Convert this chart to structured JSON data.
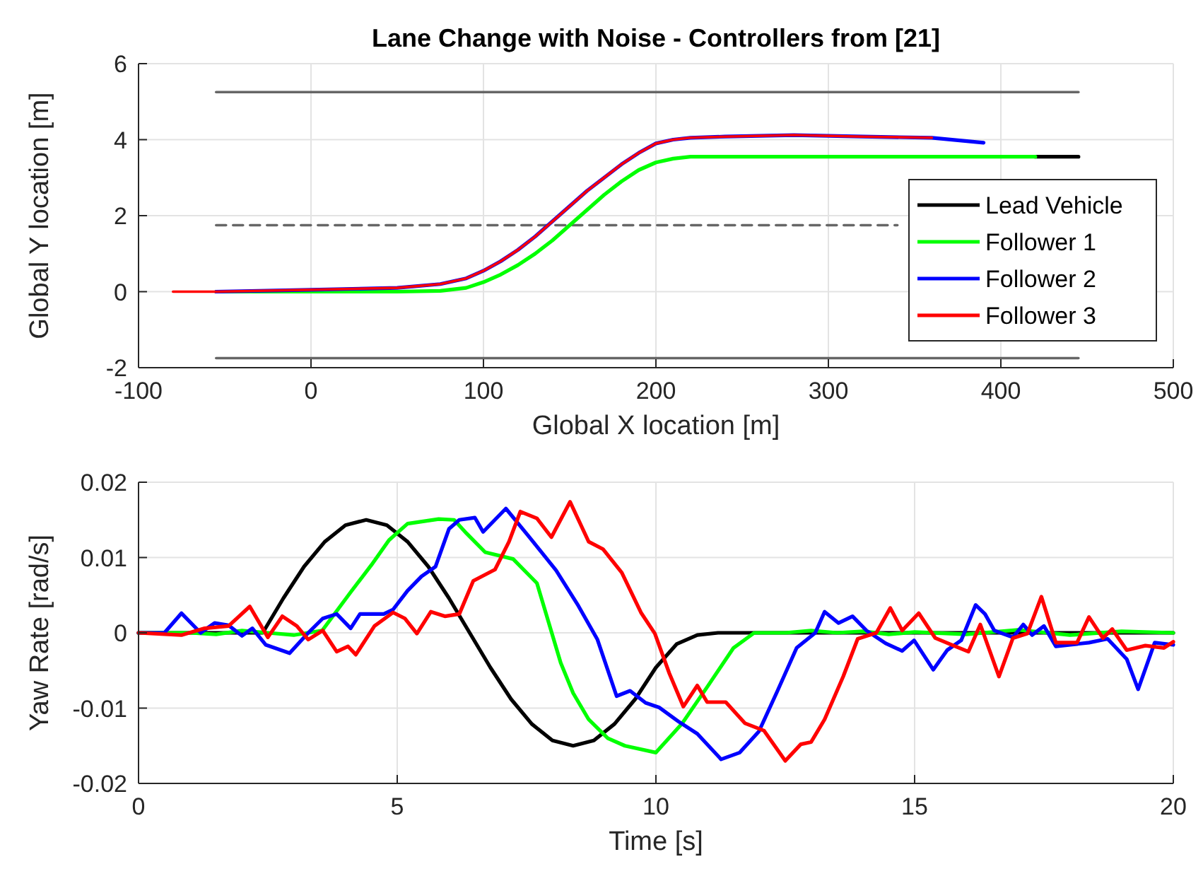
{
  "chart_data": [
    {
      "type": "line",
      "title": "Lane Change with Noise - Controllers from [21]",
      "xlabel": "Global X location [m]",
      "ylabel": "Global Y location [m]",
      "xlim": [
        -100,
        500
      ],
      "xticks": [
        -100,
        0,
        100,
        200,
        300,
        400,
        500
      ],
      "ylim": [
        -2,
        6
      ],
      "yticks": [
        -2,
        0,
        2,
        4,
        6
      ],
      "grid": true,
      "legend": "bottom right",
      "series": [
        {
          "color": "#666666",
          "x": [
            -55,
            445
          ],
          "values": [
            5.25,
            5.25
          ]
        },
        {
          "color": "#666666",
          "line_style": "dashed",
          "x": [
            -55,
            340
          ],
          "values": [
            1.75,
            1.75
          ]
        },
        {
          "color": "#666666",
          "x": [
            -55,
            445
          ],
          "values": [
            -1.75,
            -1.75
          ]
        },
        {
          "name": "Lead Vehicle",
          "color": "#000000",
          "x": [
            420,
            445
          ],
          "values": [
            3.55,
            3.55
          ]
        },
        {
          "name": "Follower 1",
          "color": "#00ff00",
          "x": [
            -55,
            0,
            50,
            75,
            90,
            100,
            110,
            120,
            130,
            140,
            150,
            160,
            170,
            180,
            190,
            200,
            210,
            220,
            230,
            300,
            420
          ],
          "values": [
            0,
            0,
            0,
            0.02,
            0.1,
            0.25,
            0.45,
            0.7,
            1.0,
            1.35,
            1.75,
            2.15,
            2.55,
            2.9,
            3.2,
            3.4,
            3.5,
            3.55,
            3.55,
            3.55,
            3.55
          ]
        },
        {
          "name": "Follower 2",
          "color": "#0000ff",
          "x": [
            -55,
            0,
            50,
            75,
            90,
            100,
            110,
            120,
            130,
            140,
            150,
            160,
            170,
            180,
            190,
            200,
            210,
            220,
            240,
            280,
            320,
            360,
            390
          ],
          "values": [
            0,
            0.05,
            0.1,
            0.2,
            0.35,
            0.55,
            0.8,
            1.1,
            1.45,
            1.85,
            2.25,
            2.65,
            3.0,
            3.35,
            3.65,
            3.9,
            4.0,
            4.05,
            4.08,
            4.12,
            4.08,
            4.05,
            3.92
          ]
        },
        {
          "name": "Follower 3",
          "color": "#ff0000",
          "x": [
            -80,
            -55,
            0,
            50,
            75,
            90,
            100,
            110,
            120,
            130,
            140,
            150,
            160,
            170,
            180,
            190,
            200,
            210,
            220,
            240,
            280,
            320,
            360
          ],
          "values": [
            0,
            0,
            0.05,
            0.1,
            0.2,
            0.35,
            0.55,
            0.8,
            1.1,
            1.45,
            1.85,
            2.25,
            2.65,
            3.0,
            3.35,
            3.65,
            3.9,
            4.0,
            4.05,
            4.08,
            4.12,
            4.08,
            4.05
          ]
        }
      ]
    },
    {
      "type": "line",
      "xlabel": "Time [s]",
      "ylabel": "Yaw Rate [rad/s]",
      "xlim": [
        0,
        20
      ],
      "xticks": [
        0,
        5,
        10,
        15,
        20
      ],
      "ylim": [
        -0.02,
        0.02
      ],
      "yticks": [
        -0.02,
        -0.01,
        0,
        0.01,
        0.02
      ],
      "grid": true,
      "series": [
        {
          "color": "#000000",
          "x": [
            0,
            2.4,
            2.8,
            3.2,
            3.6,
            4.0,
            4.4,
            4.8,
            5.2,
            5.6,
            6.0,
            6.4,
            6.8,
            7.2,
            7.6,
            8.0,
            8.4,
            8.8,
            9.2,
            9.6,
            10.0,
            10.4,
            10.8,
            11.2,
            20
          ],
          "values": [
            0,
            0,
            0.0046,
            0.0088,
            0.0121,
            0.0143,
            0.015,
            0.0143,
            0.0121,
            0.0088,
            0.0046,
            0,
            -0.0046,
            -0.0088,
            -0.0121,
            -0.0143,
            -0.015,
            -0.0143,
            -0.0121,
            -0.0088,
            -0.0046,
            -0.0015,
            -0.0003,
            0,
            0
          ]
        },
        {
          "color": "#00ff00",
          "x": [
            0,
            0.5,
            1,
            1.5,
            2,
            2.5,
            3,
            3.55,
            4.1,
            4.5,
            4.84,
            5.2,
            5.8,
            6.1,
            6.34,
            6.7,
            7.24,
            7.7,
            8.16,
            8.4,
            8.7,
            9.07,
            9.4,
            10,
            10.5,
            11,
            11.5,
            11.9,
            12.5,
            13,
            13.5,
            14,
            14.5,
            15,
            16,
            17,
            18,
            19,
            20
          ],
          "values": [
            0,
            0,
            0,
            -0.0002,
            0.0003,
            0,
            -0.0003,
            0.0003,
            0.0054,
            0.009,
            0.0123,
            0.0145,
            0.0151,
            0.015,
            0.0132,
            0.0107,
            0.0098,
            0.0066,
            -0.004,
            -0.008,
            -0.0115,
            -0.014,
            -0.015,
            -0.0159,
            -0.0121,
            -0.0071,
            -0.002,
            0,
            0,
            0.0003,
            0,
            0.0002,
            -0.0002,
            0.0001,
            -0.0002,
            0.0004,
            -0.0003,
            0.0002,
            0
          ]
        },
        {
          "color": "#0000ff",
          "x": [
            0,
            0.5,
            0.83,
            1.2,
            1.47,
            1.74,
            2.0,
            2.2,
            2.46,
            2.92,
            3.28,
            3.56,
            3.83,
            4.1,
            4.28,
            4.74,
            4.92,
            5.2,
            5.47,
            5.74,
            6.0,
            6.2,
            6.5,
            6.66,
            7.1,
            7.52,
            8.07,
            8.5,
            8.87,
            9.24,
            9.5,
            9.8,
            10.06,
            10.44,
            10.8,
            11.26,
            11.62,
            11.99,
            12.35,
            12.72,
            13.08,
            13.26,
            13.53,
            13.8,
            14.07,
            14.44,
            14.76,
            14.99,
            15.36,
            15.63,
            15.9,
            16.18,
            16.36,
            16.54,
            16.9,
            17.1,
            17.27,
            17.5,
            17.73,
            18.37,
            18.73,
            19.1,
            19.32,
            19.64,
            20
          ],
          "values": [
            0,
            0,
            0.0026,
            0,
            0.0013,
            0.001,
            -0.0004,
            0.0006,
            -0.0016,
            -0.0027,
            0,
            0.0019,
            0.0025,
            0.0006,
            0.0025,
            0.0025,
            0.0031,
            0.0056,
            0.0075,
            0.0088,
            0.0138,
            0.015,
            0.0153,
            0.0134,
            0.0165,
            0.013,
            0.0083,
            0.0036,
            -0.0009,
            -0.0084,
            -0.0077,
            -0.0093,
            -0.0099,
            -0.0118,
            -0.0134,
            -0.0168,
            -0.0159,
            -0.0131,
            -0.0077,
            -0.002,
            0,
            0.0028,
            0.0013,
            0.0022,
            0.0003,
            -0.0014,
            -0.0024,
            -0.001,
            -0.0049,
            -0.0023,
            -0.001,
            0.0037,
            0.0025,
            0.0003,
            -0.0006,
            0.0011,
            -0.0003,
            0.0009,
            -0.0018,
            -0.0013,
            -0.0008,
            -0.0035,
            -0.0075,
            -0.0013,
            -0.0016
          ]
        },
        {
          "color": "#ff0000",
          "x": [
            0,
            0.83,
            1.28,
            1.74,
            2.15,
            2.5,
            2.78,
            3.06,
            3.28,
            3.56,
            3.83,
            4.05,
            4.2,
            4.56,
            4.92,
            5.15,
            5.38,
            5.65,
            5.92,
            6.2,
            6.47,
            6.89,
            7.16,
            7.38,
            7.7,
            7.98,
            8.34,
            8.7,
            8.98,
            9.34,
            9.71,
            9.98,
            10.26,
            10.53,
            10.8,
            10.99,
            11.35,
            11.72,
            12.09,
            12.5,
            12.8,
            13.0,
            13.26,
            13.62,
            13.9,
            14.26,
            14.53,
            14.76,
            15.08,
            15.4,
            15.72,
            16.04,
            16.27,
            16.63,
            16.9,
            17.18,
            17.45,
            17.73,
            18.14,
            18.37,
            18.64,
            18.82,
            19.1,
            19.46,
            19.82,
            20
          ],
          "values": [
            0,
            -0.0003,
            0.0006,
            0.0009,
            0.0035,
            -0.0006,
            0.0022,
            0.0009,
            -0.0009,
            0.0003,
            -0.0025,
            -0.0018,
            -0.0029,
            0.0009,
            0.0027,
            0.0019,
            -0.0001,
            0.0028,
            0.0022,
            0.0025,
            0.0069,
            0.0084,
            0.0121,
            0.0161,
            0.0152,
            0.0127,
            0.0174,
            0.0121,
            0.0111,
            0.008,
            0.0027,
            -0.0001,
            -0.0054,
            -0.0098,
            -0.007,
            -0.0092,
            -0.0092,
            -0.012,
            -0.013,
            -0.017,
            -0.0148,
            -0.0145,
            -0.0115,
            -0.0058,
            -0.0008,
            0,
            0.0033,
            0.0003,
            0.0026,
            -0.0007,
            -0.0016,
            -0.0025,
            0.0011,
            -0.0058,
            -0.0007,
            -0.0001,
            0.0048,
            -0.0013,
            -0.0013,
            0.0021,
            -0.0007,
            0.0005,
            -0.0023,
            -0.0017,
            -0.002,
            -0.0012
          ]
        }
      ]
    }
  ]
}
